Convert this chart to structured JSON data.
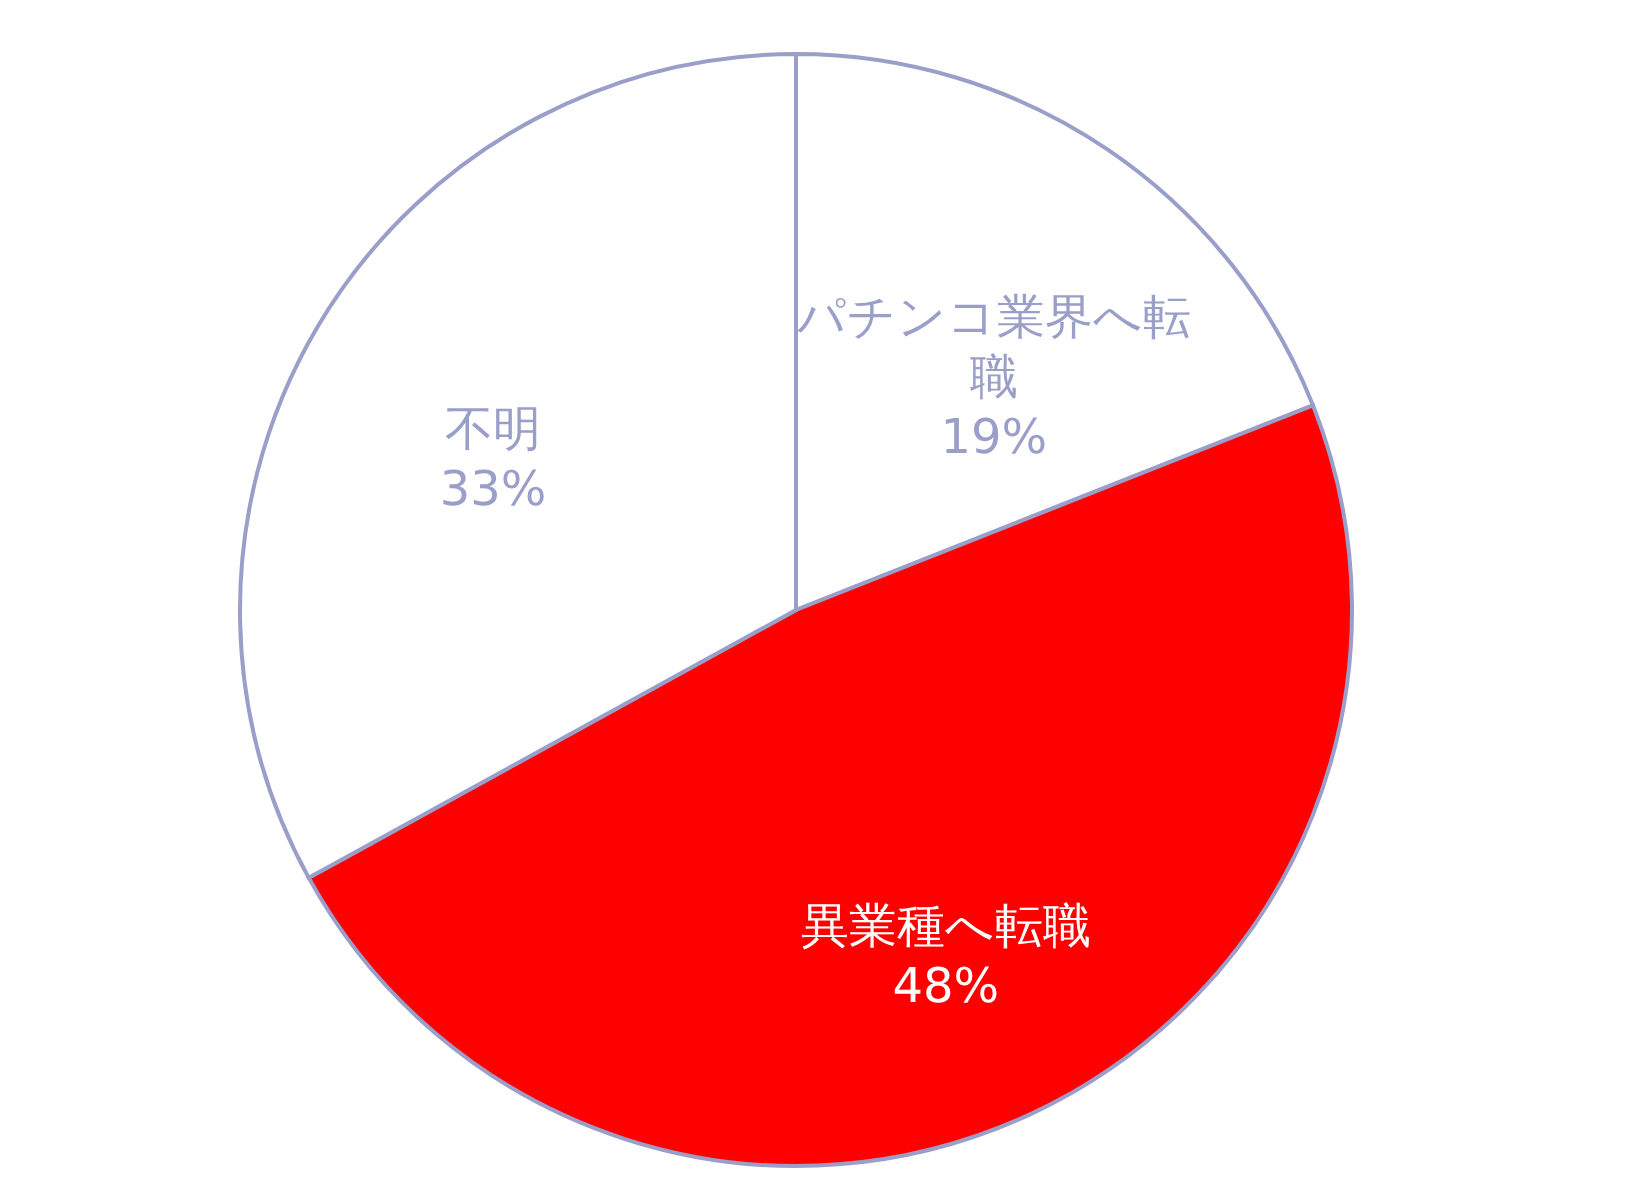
{
  "chart_data": {
    "type": "pie",
    "categories": [
      "パチンコ業界へ転職",
      "異業種へ転職",
      "不明"
    ],
    "values": [
      19,
      48,
      33
    ],
    "value_labels": [
      "19%",
      "48%",
      "33%"
    ],
    "colors": [
      "#ffffff",
      "#ff0000",
      "#ffffff"
    ],
    "legend": false
  }
}
